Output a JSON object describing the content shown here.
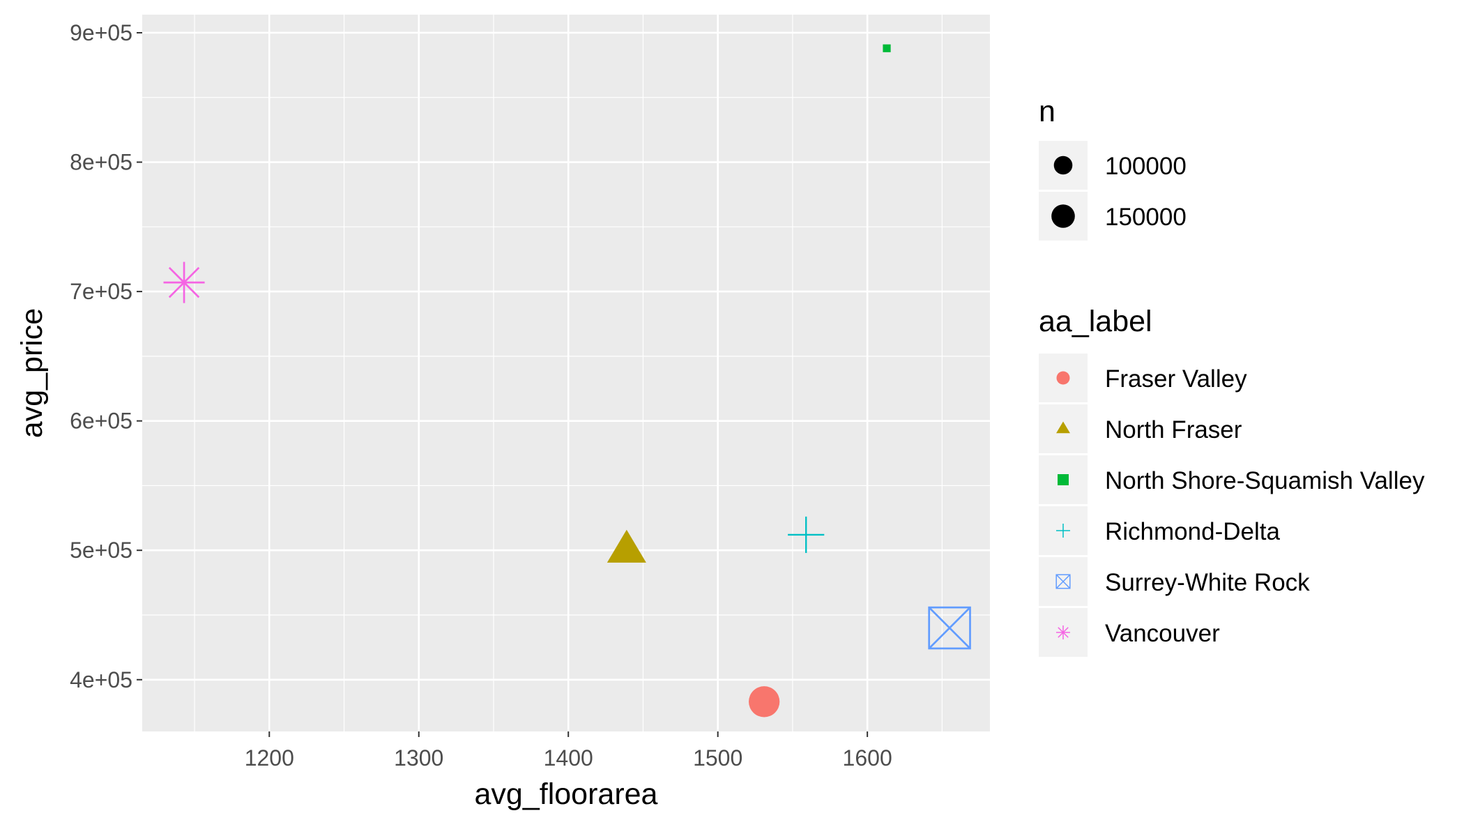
{
  "chart_data": {
    "type": "scatter",
    "xlabel": "avg_floorarea",
    "ylabel": "avg_price",
    "xlim": [
      1115,
      1682
    ],
    "ylim": [
      360000,
      914000
    ],
    "x_ticks": [
      1200,
      1300,
      1400,
      1500,
      1600
    ],
    "x_tick_labels": [
      "1200",
      "1300",
      "1400",
      "1500",
      "1600"
    ],
    "y_ticks": [
      400000,
      500000,
      600000,
      700000,
      800000,
      900000
    ],
    "y_tick_labels": [
      "4e+05",
      "5e+05",
      "6e+05",
      "7e+05",
      "8e+05",
      "9e+05"
    ],
    "grid": true,
    "legend_position": "right",
    "size_legend": {
      "title": "n",
      "entries": [
        {
          "label": "100000",
          "value": 100000
        },
        {
          "label": "150000",
          "value": 150000
        }
      ]
    },
    "shape_legend": {
      "title": "aa_label",
      "entries": [
        "Fraser Valley",
        "North Fraser",
        "North Shore-Squamish Valley",
        "Richmond-Delta",
        "Surrey-White Rock",
        "Vancouver"
      ]
    },
    "series": [
      {
        "name": "Fraser Valley",
        "color": "#F8766D",
        "shape": "circle",
        "x": 1531,
        "y": 383000,
        "n": 115000
      },
      {
        "name": "North Fraser",
        "color": "#B79F00",
        "shape": "triangle",
        "x": 1439,
        "y": 500000,
        "n": 160000
      },
      {
        "name": "North Shore-Squamish Valley",
        "color": "#00BA38",
        "shape": "square",
        "x": 1613,
        "y": 888000,
        "n": 25000
      },
      {
        "name": "Richmond-Delta",
        "color": "#00BFC4",
        "shape": "plus",
        "x": 1559,
        "y": 512000,
        "n": 140000
      },
      {
        "name": "Surrey-White Rock",
        "color": "#619CFF",
        "shape": "square-cross",
        "x": 1655,
        "y": 440000,
        "n": 180000
      },
      {
        "name": "Vancouver",
        "color": "#F564E3",
        "shape": "asterisk",
        "x": 1143,
        "y": 707000,
        "n": 175000
      }
    ]
  }
}
